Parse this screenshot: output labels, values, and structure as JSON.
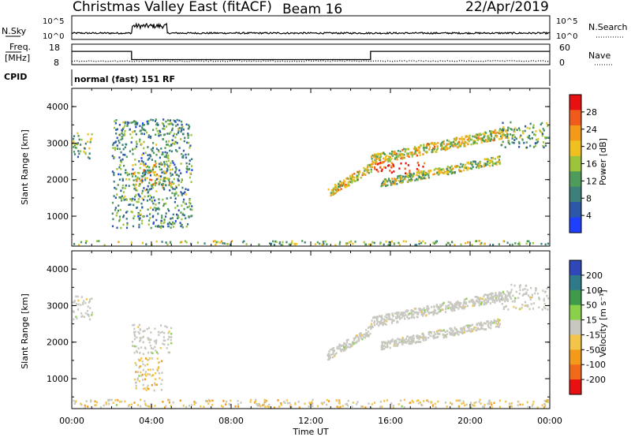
{
  "header": {
    "station": "Christmas Valley East (fitACF)",
    "beam": "Beam 16",
    "date": "22/Apr/2019"
  },
  "params": {
    "nsky_label": "N.Sky",
    "nsky_ticks": [
      "10^5",
      "10^0"
    ],
    "nsearch_label": "N.Search",
    "freq_label_1": "Freq.",
    "freq_label_2": "[MHz]",
    "freq_ticks": [
      "18",
      "8"
    ],
    "nave_label": "Nave",
    "nave_ticks": [
      "60",
      "0"
    ],
    "cpid_label": "CPID",
    "cpid_text": "normal (fast) 151 RF"
  },
  "chart_data": [
    {
      "type": "line",
      "name": "N.Sky / Freq. / Nave",
      "x_range": [
        0,
        24
      ],
      "freq_mhz": [
        {
          "from": 0,
          "to": 3.0,
          "value": 14.5
        },
        {
          "from": 3.0,
          "to": 15.0,
          "value": 10.5
        },
        {
          "from": 15.0,
          "to": 24,
          "value": 14.5
        }
      ],
      "freq_ylim": [
        8,
        18
      ],
      "nave_approx": 12,
      "nave_ylim": [
        0,
        60
      ]
    },
    {
      "type": "heatmap",
      "title": "Power [dB]",
      "xlabel": "Time UT",
      "ylabel": "Slant Range [km]",
      "xticks": [
        "00:00",
        "04:00",
        "08:00",
        "12:00",
        "16:00",
        "20:00",
        "00:00"
      ],
      "yticks": [
        "1000",
        "2000",
        "3000",
        "4000"
      ],
      "x_range_hours": [
        0,
        24
      ],
      "ylim": [
        180,
        4500
      ],
      "colorbar_label": "Power [dB]",
      "colorbar_ticks": [
        "4",
        "8",
        "12",
        "16",
        "20",
        "24",
        "28"
      ],
      "colorbar_range": [
        0,
        30
      ],
      "colors": [
        "#1f3fff",
        "#2d57a8",
        "#3d7f7a",
        "#4f9c5a",
        "#9cc43a",
        "#f0c020",
        "#f39a1a",
        "#f05a1a",
        "#e81010"
      ],
      "features": [
        {
          "name": "early echoes",
          "t": [
            0.0,
            1.0
          ],
          "r": [
            2600,
            3300
          ],
          "power_db": 13
        },
        {
          "name": "pre-dawn band",
          "t": [
            3.0,
            5.0
          ],
          "r": [
            1700,
            2500
          ],
          "power_db": 18
        },
        {
          "name": "scattered early",
          "t": [
            2.0,
            6.0
          ],
          "r": [
            700,
            3700
          ],
          "power_db": 10
        },
        {
          "name": "evening arc 1",
          "t": [
            12.8,
            15.0
          ],
          "r": [
            1500,
            2500
          ],
          "power_db": 18
        },
        {
          "name": "strong patch",
          "t": [
            15.0,
            17.8
          ],
          "r": [
            2200,
            2500
          ],
          "power_db": 27
        },
        {
          "name": "evening arc 2",
          "t": [
            15.0,
            22.0
          ],
          "r": [
            2400,
            3500
          ],
          "power_db": 17
        },
        {
          "name": "lower arc",
          "t": [
            15.5,
            21.5
          ],
          "r": [
            1800,
            2700
          ],
          "power_db": 15
        },
        {
          "name": "late band",
          "t": [
            21.5,
            24.0
          ],
          "r": [
            2900,
            3600
          ],
          "power_db": 12
        },
        {
          "name": "ground scatter floor",
          "t": [
            0.0,
            24.0
          ],
          "r": [
            180,
            350
          ],
          "power_db": 14
        }
      ]
    },
    {
      "type": "heatmap",
      "title": "Velocity [m s-1]",
      "xlabel": "Time UT",
      "ylabel": "Slant Range [km]",
      "xticks": [
        "00:00",
        "04:00",
        "08:00",
        "12:00",
        "16:00",
        "20:00",
        "00:00"
      ],
      "yticks": [
        "1000",
        "2000",
        "3000",
        "4000"
      ],
      "x_range_hours": [
        0,
        24
      ],
      "ylim": [
        180,
        4500
      ],
      "colorbar_label": "Velocity [m s⁻¹]",
      "colorbar_ticks": [
        "200",
        "100",
        "50",
        "15",
        "-15",
        "-50",
        "-100",
        "-200"
      ],
      "colorbar_range": [
        -250,
        250
      ],
      "colors": [
        "#2f47b8",
        "#2f7a8a",
        "#3f9a4a",
        "#8ad14a",
        "#c8c8c0",
        "#f3c44a",
        "#f39a1a",
        "#f06a1a",
        "#e81010"
      ],
      "ground_scatter_color": "#c8c8c0",
      "features": [
        {
          "name": "early echoes",
          "t": [
            0.0,
            1.0
          ],
          "r": [
            2600,
            3300
          ],
          "vel": 0
        },
        {
          "name": "pre-dawn band",
          "t": [
            3.0,
            5.0
          ],
          "r": [
            1700,
            2500
          ],
          "vel": 0
        },
        {
          "name": "pre-dawn drift",
          "t": [
            3.0,
            4.5
          ],
          "r": [
            700,
            1600
          ],
          "vel": -40
        },
        {
          "name": "evening arc 1",
          "t": [
            12.8,
            15.0
          ],
          "r": [
            1500,
            2500
          ],
          "vel": 0
        },
        {
          "name": "evening arc 2",
          "t": [
            15.0,
            22.0
          ],
          "r": [
            2400,
            3500
          ],
          "vel": 0
        },
        {
          "name": "lower arc",
          "t": [
            15.5,
            21.5
          ],
          "r": [
            1800,
            2700
          ],
          "vel": 0
        },
        {
          "name": "late band",
          "t": [
            21.5,
            24.0
          ],
          "r": [
            2900,
            3600
          ],
          "vel": 0
        },
        {
          "name": "near-range flow",
          "t": [
            0.0,
            24.0
          ],
          "r": [
            180,
            450
          ],
          "vel": -40
        }
      ]
    }
  ]
}
